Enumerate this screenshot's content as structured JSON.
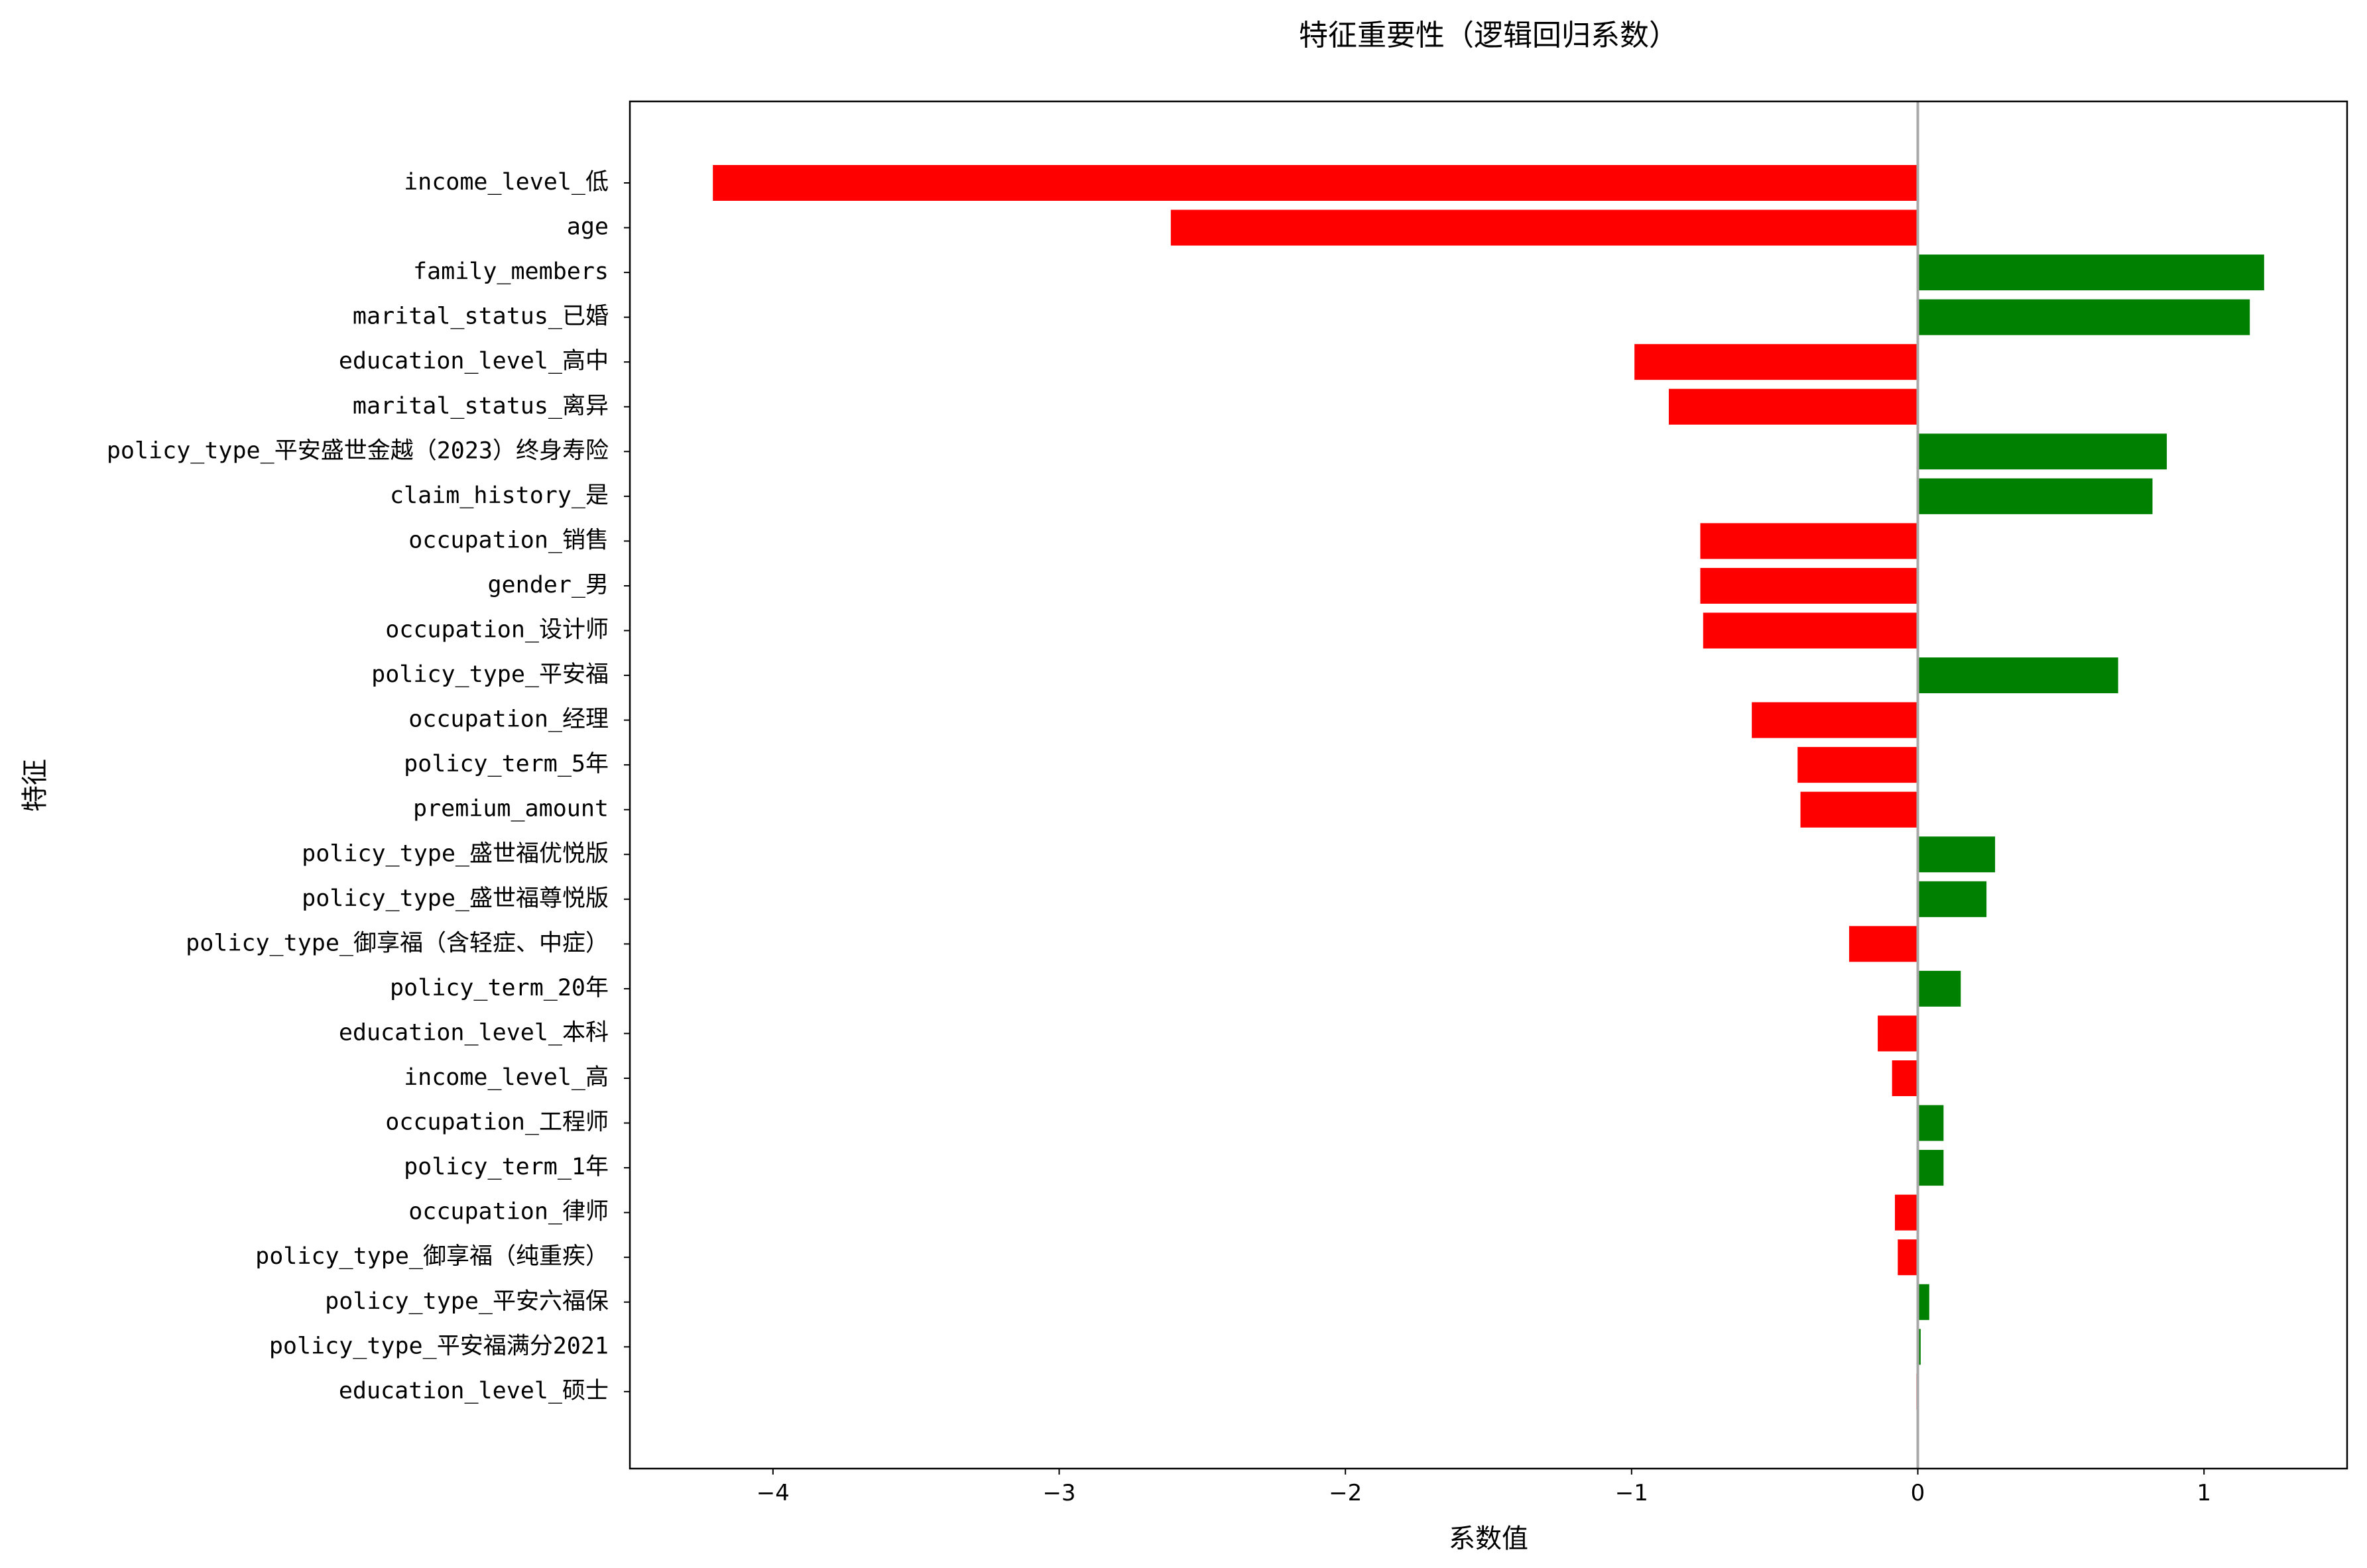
{
  "chart_data": {
    "type": "bar",
    "orientation": "horizontal",
    "title": "特征重要性（逻辑回归系数）",
    "xlabel": "系数值",
    "ylabel": "特征",
    "xlim": [
      -4.5,
      1.5
    ],
    "xticks": [
      -4,
      -3,
      -2,
      -1,
      0,
      1
    ],
    "xtick_labels": [
      "−4",
      "−3",
      "−2",
      "−1",
      "0",
      "1"
    ],
    "grid": false,
    "zero_line": true,
    "colors": {
      "positive": "#008000",
      "negative": "#ff0000",
      "zero_line": "#a9a9a9",
      "axes": "#000000"
    },
    "categories": [
      "income_level_低",
      "age",
      "family_members",
      "marital_status_已婚",
      "education_level_高中",
      "marital_status_离异",
      "policy_type_平安盛世金越（2023）终身寿险",
      "claim_history_是",
      "occupation_销售",
      "gender_男",
      "occupation_设计师",
      "policy_type_平安福",
      "occupation_经理",
      "policy_term_5年",
      "premium_amount",
      "policy_type_盛世福优悦版",
      "policy_type_盛世福尊悦版",
      "policy_type_御享福（含轻症、中症）",
      "policy_term_20年",
      "education_level_本科",
      "income_level_高",
      "occupation_工程师",
      "policy_term_1年",
      "occupation_律师",
      "policy_type_御享福（纯重疾）",
      "policy_type_平安六福保",
      "policy_type_平安福满分2021",
      "education_level_硕士"
    ],
    "values": [
      -4.21,
      -2.61,
      1.21,
      1.16,
      -0.99,
      -0.87,
      0.87,
      0.82,
      -0.76,
      -0.76,
      -0.75,
      0.7,
      -0.58,
      -0.42,
      -0.41,
      0.27,
      0.24,
      -0.24,
      0.15,
      -0.14,
      -0.09,
      0.09,
      0.09,
      -0.08,
      -0.07,
      0.04,
      0.01,
      -0.005
    ]
  }
}
